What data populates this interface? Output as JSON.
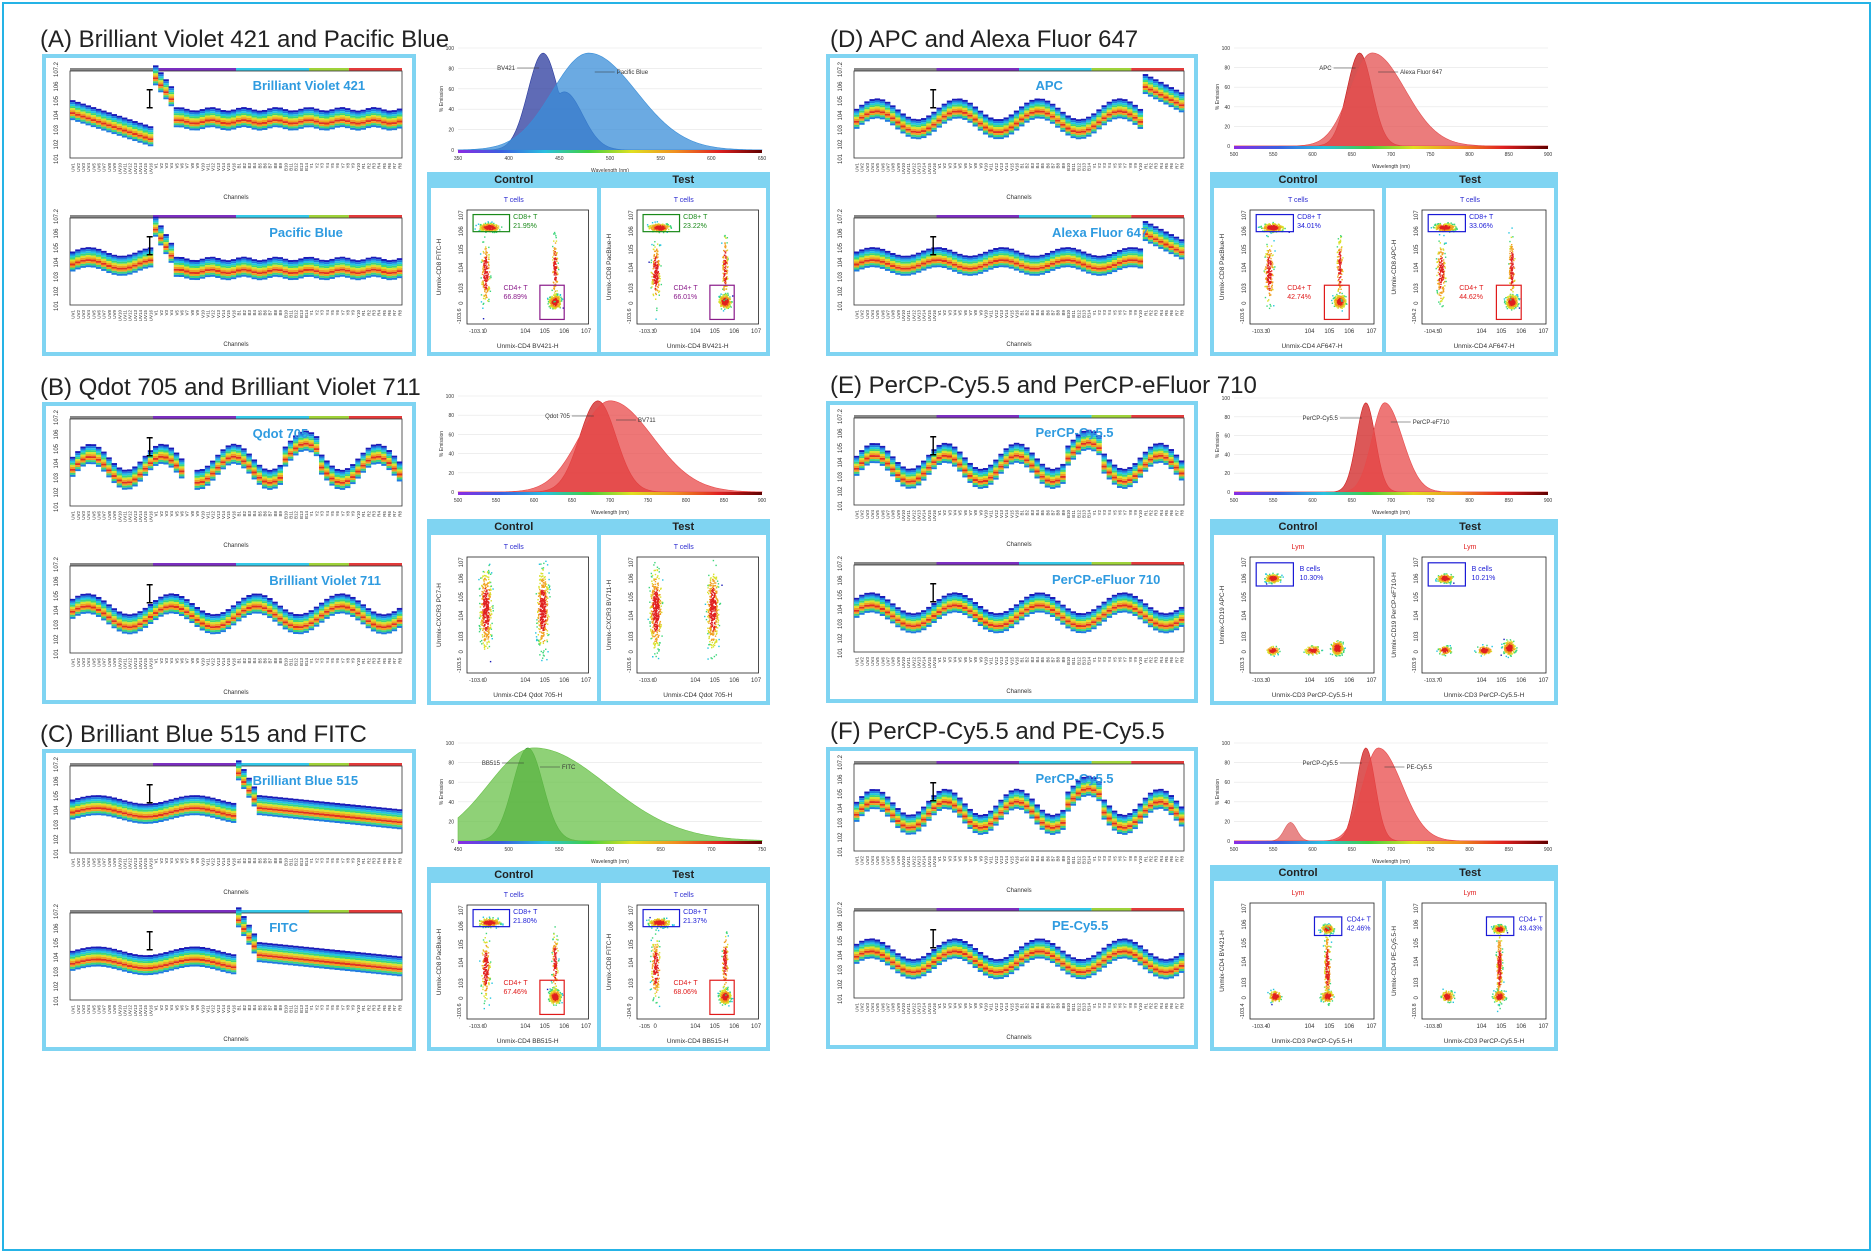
{
  "panels": [
    {
      "id": "A",
      "title": "(A) Brilliant Violet 421 and Pacific Blue",
      "sig_top": "Brilliant Violet 421",
      "sig_bot": "Pacific Blue",
      "spectrum": {
        "axis": [
          "350",
          "400",
          "450",
          "500",
          "550",
          "600",
          "650"
        ],
        "xlabel": "Wavelength (nm)",
        "ylabel": "% Emission",
        "yticks": [
          "0",
          "20",
          "40",
          "60",
          "80",
          "100"
        ],
        "labels": [
          "BV421",
          "Pacific Blue"
        ]
      },
      "control": {
        "title": "Control",
        "pop": "T cells",
        "ylabel": "Unmix-CD8 FITC-H",
        "xlabel": "Unmix-CD4 BV421-H",
        "ymin": "-10^3.6",
        "xmin": "-10^3.1",
        "gates": [
          {
            "name": "CD8+ T",
            "pct": "21.95%",
            "color": "#1a8a1a"
          },
          {
            "name": "CD4+ T",
            "pct": "66.89%",
            "color": "#8a1a8a"
          }
        ]
      },
      "test": {
        "title": "Test",
        "pop": "T cells",
        "ylabel": "Unmix-CD8 PacBlue-H",
        "xlabel": "Unmix-CD4 BV421-H",
        "ymin": "-10^3.6",
        "xmin": "-10^3.3",
        "gates": [
          {
            "name": "CD8+ T",
            "pct": "23.22%",
            "color": "#1a8a1a"
          },
          {
            "name": "CD4+ T",
            "pct": "66.01%",
            "color": "#8a1a8a"
          }
        ]
      }
    },
    {
      "id": "B",
      "title": "(B) Qdot 705 and Brilliant Violet 711",
      "sig_top": "Qdot 705",
      "sig_bot": "Brilliant Violet 711",
      "spectrum": {
        "axis": [
          "500",
          "550",
          "600",
          "650",
          "700",
          "750",
          "800",
          "850",
          "900"
        ],
        "xlabel": "Wavelength (nm)",
        "ylabel": "% Emission",
        "yticks": [
          "0",
          "20",
          "40",
          "60",
          "80",
          "100"
        ],
        "labels": [
          "Qdot 705",
          "BV711"
        ]
      },
      "control": {
        "title": "Control",
        "pop": "T cells",
        "ylabel": "Unmix-CXCR3 PC7-H",
        "xlabel": "Unmix-CD4 Qdot 705-H",
        "ymin": "-10^3.5",
        "xmin": "-10^3.6",
        "gates": []
      },
      "test": {
        "title": "Test",
        "pop": "T cells",
        "ylabel": "Unmix-CXCR3 BV711-H",
        "xlabel": "Unmix-CD4 Qdot 705-H",
        "ymin": "-10^3.6",
        "xmin": "-10^3.6",
        "gates": []
      }
    },
    {
      "id": "C",
      "title": "(C) Brilliant Blue 515 and FITC",
      "sig_top": "Brilliant Blue 515",
      "sig_bot": "FITC",
      "spectrum": {
        "axis": [
          "450",
          "500",
          "550",
          "600",
          "650",
          "700",
          "750"
        ],
        "xlabel": "Wavelength (nm)",
        "ylabel": "% Emission",
        "yticks": [
          "0",
          "20",
          "40",
          "60",
          "80",
          "100"
        ],
        "labels": [
          "BB515",
          "FITC"
        ]
      },
      "control": {
        "title": "Control",
        "pop": "T cells",
        "ylabel": "Unmix-CD8 PacBlue-H",
        "xlabel": "Unmix-CD4 BB515-H",
        "ymin": "-10^3.6",
        "xmin": "-10^3.6",
        "gates": [
          {
            "name": "CD8+ T",
            "pct": "21.80%",
            "color": "#1a1ad6"
          },
          {
            "name": "CD4+ T",
            "pct": "67.46%",
            "color": "#e01a1a"
          }
        ]
      },
      "test": {
        "title": "Test",
        "pop": "T cells",
        "ylabel": "Unmix-CD8 FITC-H",
        "xlabel": "Unmix-CD4 BB515-H",
        "ymin": "-10^4.9",
        "xmin": "-10^5",
        "gates": [
          {
            "name": "CD8+ T",
            "pct": "21.37%",
            "color": "#1a1ad6"
          },
          {
            "name": "CD4+ T",
            "pct": "68.06%",
            "color": "#e01a1a"
          }
        ]
      }
    },
    {
      "id": "D",
      "title": "(D) APC and Alexa Fluor 647",
      "sig_top": "APC",
      "sig_bot": "Alexa Fluor 647",
      "spectrum": {
        "axis": [
          "500",
          "550",
          "600",
          "650",
          "700",
          "750",
          "800",
          "850",
          "900"
        ],
        "xlabel": "Wavelength (nm)",
        "ylabel": "% Emission",
        "yticks": [
          "0",
          "20",
          "40",
          "60",
          "80",
          "100"
        ],
        "labels": [
          "APC",
          "Alexa Fluor 647"
        ]
      },
      "control": {
        "title": "Control",
        "pop": "T cells",
        "ylabel": "Unmix-CD8 PacBlue-H",
        "xlabel": "Unmix-CD4 AF647-H",
        "ymin": "-10^3.6",
        "xmin": "-10^3.3",
        "gates": [
          {
            "name": "CD8+ T",
            "pct": "34.01%",
            "color": "#1a1ad6"
          },
          {
            "name": "CD4+ T",
            "pct": "42.74%",
            "color": "#e01a1a"
          }
        ]
      },
      "test": {
        "title": "Test",
        "pop": "T cells",
        "ylabel": "Unmix-CD8 APC-H",
        "xlabel": "Unmix-CD4 AF647-H",
        "ymin": "-10^4.2",
        "xmin": "-10^4.5",
        "gates": [
          {
            "name": "CD8+ T",
            "pct": "33.06%",
            "color": "#1a1ad6"
          },
          {
            "name": "CD4+ T",
            "pct": "44.62%",
            "color": "#e01a1a"
          }
        ]
      }
    },
    {
      "id": "E",
      "title": "(E) PerCP-Cy5.5 and PerCP-eFluor 710",
      "sig_top": "PerCP-Cy5.5",
      "sig_bot": "PerCP-eFluor 710",
      "spectrum": {
        "axis": [
          "500",
          "550",
          "600",
          "650",
          "700",
          "750",
          "800",
          "850",
          "900"
        ],
        "xlabel": "Wavelength (nm)",
        "ylabel": "% Emission",
        "yticks": [
          "0",
          "20",
          "40",
          "60",
          "80",
          "100"
        ],
        "labels": [
          "PerCP-Cy5.5",
          "PerCP-eF710"
        ]
      },
      "control": {
        "title": "Control",
        "pop": "Lym",
        "ylabel": "Unmix-CD19 APC-H",
        "xlabel": "Unmix-CD3 PerCP-Cy5.5-H",
        "ymin": "-10^3.3",
        "xmin": "-10^3.3",
        "gates": [
          {
            "name": "B cells",
            "pct": "10.30%",
            "color": "#1a1ad6"
          }
        ]
      },
      "test": {
        "title": "Test",
        "pop": "Lym",
        "ylabel": "Unmix-CD19 PerCP-eF710-H",
        "xlabel": "Unmix-CD3 PerCP-Cy5.5-H",
        "ymin": "-10^3.9",
        "xmin": "-10^3.7",
        "gates": [
          {
            "name": "B cells",
            "pct": "10.21%",
            "color": "#1a1ad6"
          }
        ]
      }
    },
    {
      "id": "F",
      "title": "(F) PerCP-Cy5.5 and PE-Cy5.5",
      "sig_top": "PerCP-Cy5.5",
      "sig_bot": "PE-Cy5.5",
      "spectrum": {
        "axis": [
          "500",
          "550",
          "600",
          "650",
          "700",
          "750",
          "800",
          "850",
          "900"
        ],
        "xlabel": "Wavelength (nm)",
        "ylabel": "% Emission",
        "yticks": [
          "0",
          "20",
          "40",
          "60",
          "80",
          "100"
        ],
        "labels": [
          "PerCP-Cy5.5",
          "PE-Cy5.5"
        ]
      },
      "control": {
        "title": "Control",
        "pop": "Lym",
        "ylabel": "Unmix-CD4 BV421-H",
        "xlabel": "Unmix-CD3 PerCP-Cy5.5-H",
        "ymin": "-10^3.4",
        "xmin": "-10^3.4",
        "gates": [
          {
            "name": "CD4+ T",
            "pct": "42.46%",
            "color": "#1a1ad6"
          }
        ]
      },
      "test": {
        "title": "Test",
        "pop": "Lym",
        "ylabel": "Unmix-CD4 PE-Cy5.5-H",
        "xlabel": "Unmix-CD3 PerCP-Cy5.5-H",
        "ymin": "-10^3.8",
        "xmin": "-10^3.8",
        "gates": [
          {
            "name": "CD4+ T",
            "pct": "43.43%",
            "color": "#1a1ad6"
          }
        ]
      }
    }
  ],
  "signature": {
    "xlabel": "Channels",
    "ylabel": "MFI-H",
    "yticks": [
      "10^1",
      "10^2",
      "10^3",
      "10^4",
      "10^5",
      "10^6",
      "10^7.2"
    ],
    "channels": [
      "UV1",
      "UV2",
      "UV3",
      "UV4",
      "UV5",
      "UV6",
      "UV7",
      "UV8",
      "UV9",
      "UV10",
      "UV11",
      "UV12",
      "UV13",
      "UV14",
      "UV15",
      "UV16",
      "V1",
      "V2",
      "V3",
      "V4",
      "V5",
      "V6",
      "V7",
      "V8",
      "V9",
      "V10",
      "V11",
      "V12",
      "V13",
      "V14",
      "V15",
      "V16",
      "B1",
      "B2",
      "B3",
      "B4",
      "B5",
      "B6",
      "B7",
      "B8",
      "B9",
      "B10",
      "B11",
      "B12",
      "B13",
      "B14",
      "Y1",
      "Y2",
      "Y3",
      "Y4",
      "Y5",
      "Y6",
      "Y7",
      "Y8",
      "Y9",
      "Y10",
      "R1",
      "R2",
      "R3",
      "R4",
      "R5",
      "R6",
      "R7",
      "R8"
    ],
    "laser_colors": [
      "#888888",
      "#7b2fbf",
      "#35c8e8",
      "#9fd23a",
      "#e23b3b"
    ]
  },
  "colors": {
    "frame": "#25b3e6",
    "panel_border": "#7fd4f2",
    "title_blue": "#2f9be0"
  }
}
